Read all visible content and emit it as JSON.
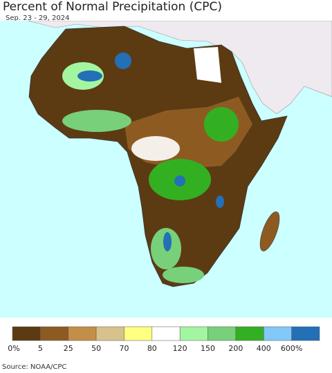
{
  "title": "Percent of Normal Precipitation (CPC)",
  "subtitle": "Sep. 23 - 29, 2024",
  "legend": {
    "colors": [
      "#5c3b13",
      "#8d5b22",
      "#c38e48",
      "#d8c28c",
      "#ffff80",
      "#ffffff",
      "#a4f5a0",
      "#78d07a",
      "#33b022",
      "#82c8f8",
      "#2370b6"
    ],
    "labels": [
      "0%",
      "5",
      "25",
      "50",
      "70",
      "80",
      "120",
      "150",
      "200",
      "400",
      "600%"
    ]
  },
  "source": "Source: NOAA/CPC"
}
